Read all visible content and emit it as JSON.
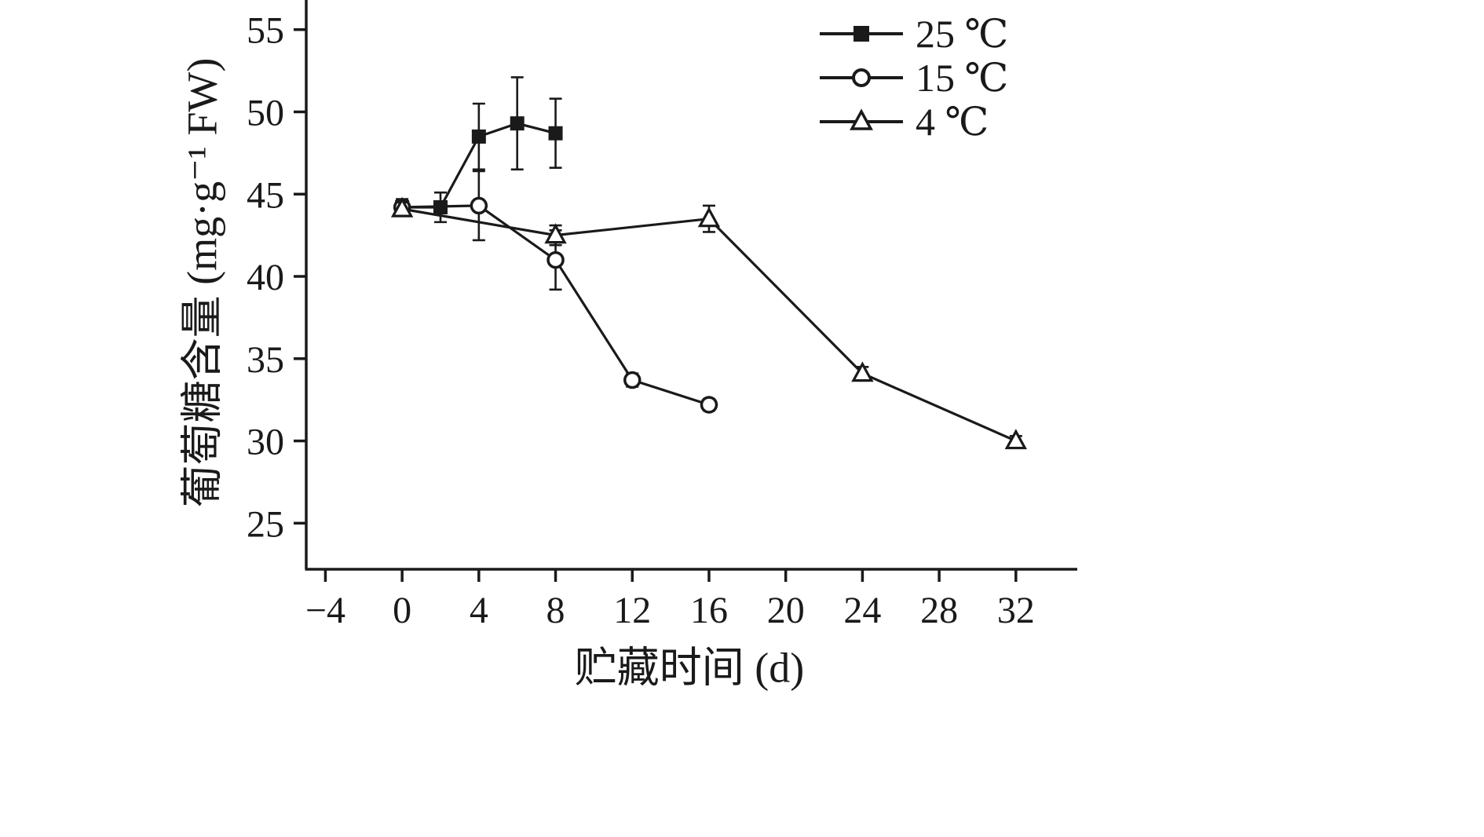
{
  "chart_data": {
    "type": "line",
    "title": "",
    "xlabel": "贮藏时间 (d)",
    "ylabel": "葡萄糖含量 (mg·g⁻¹ FW)",
    "xlim": [
      -5,
      35.2
    ],
    "ylim": [
      22.2,
      56.8
    ],
    "xticks": [
      -4,
      0,
      4,
      8,
      12,
      16,
      20,
      24,
      28,
      32
    ],
    "yticks": [
      25,
      30,
      35,
      40,
      45,
      50,
      55
    ],
    "grid": false,
    "legend_position": "top-right",
    "line_color": "#1a1a1a",
    "series": [
      {
        "name": "25 ℃",
        "marker": "filled-square",
        "x": [
          0,
          2,
          4,
          6,
          8
        ],
        "y": [
          44.2,
          44.2,
          48.5,
          49.3,
          48.7
        ],
        "yerr": [
          0.5,
          0.9,
          2.0,
          2.8,
          2.1
        ]
      },
      {
        "name": "15 ℃",
        "marker": "open-circle",
        "x": [
          0,
          4,
          8,
          12,
          16
        ],
        "y": [
          44.2,
          44.3,
          41.0,
          33.7,
          32.2
        ],
        "yerr": [
          0.4,
          2.1,
          1.8,
          0.4,
          0.35
        ]
      },
      {
        "name": "4 ℃",
        "marker": "open-triangle",
        "x": [
          0,
          8,
          16,
          24,
          32
        ],
        "y": [
          44.1,
          42.5,
          43.5,
          34.1,
          30.0
        ],
        "yerr": [
          0.4,
          0.6,
          0.8,
          0.4,
          0.3
        ]
      }
    ]
  }
}
